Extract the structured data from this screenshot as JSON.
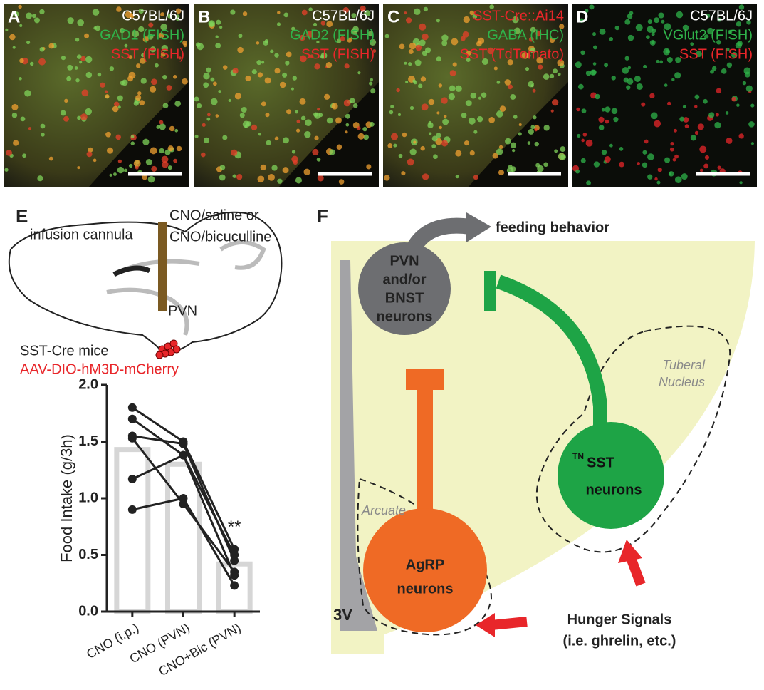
{
  "panels": [
    {
      "letter": "A",
      "lines": [
        {
          "text": "C57BL/6J",
          "color": "#ffffff"
        },
        {
          "text": "GAD1 (FISH)",
          "color": "#2fb34a"
        },
        {
          "text": "SST (FISH)",
          "color": "#e8262a"
        }
      ]
    },
    {
      "letter": "B",
      "lines": [
        {
          "text": "C57BL/6J",
          "color": "#ffffff"
        },
        {
          "text": "GAD2 (FISH)",
          "color": "#2fb34a"
        },
        {
          "text": "SST (FISH)",
          "color": "#e8262a"
        }
      ]
    },
    {
      "letter": "C",
      "lines": [
        {
          "text": "SST-Cre::Ai14",
          "color": "#e8262a"
        },
        {
          "text": "GABA (IHC)",
          "color": "#2fb34a"
        },
        {
          "text": "SST (TdTomato)",
          "color": "#e8262a"
        }
      ]
    },
    {
      "letter": "D",
      "lines": [
        {
          "text": "C57BL/6J",
          "color": "#ffffff"
        },
        {
          "text": "VGlut2 (FISH)",
          "color": "#2fb34a"
        },
        {
          "text": "SST (FISH)",
          "color": "#e8262a"
        }
      ]
    }
  ],
  "panel_e": {
    "letter": "E",
    "cannula_label": "infusion cannula",
    "infusion": [
      "CNO/saline or",
      "CNO/bicuculline"
    ],
    "region": "PVN",
    "mouse": "SST-Cre mice",
    "virus": "AAV-DIO-hM3D-mCherry"
  },
  "chart_data": {
    "type": "bar",
    "ylabel": "Food Intake (g/3h)",
    "categories": [
      "CNO (i.p.)",
      "CNO (PVN)",
      "CNO+Bic (PVN)"
    ],
    "values": [
      1.43,
      1.3,
      0.42
    ],
    "color": "#d6d6d6",
    "subjects": [
      {
        "values": [
          1.8,
          1.5,
          0.55
        ]
      },
      {
        "values": [
          1.7,
          1.38,
          0.5
        ]
      },
      {
        "values": [
          1.55,
          1.48,
          0.45
        ]
      },
      {
        "values": [
          1.53,
          0.95,
          0.35
        ]
      },
      {
        "values": [
          1.17,
          1.38,
          0.32
        ]
      },
      {
        "values": [
          0.9,
          1.0,
          0.23
        ]
      }
    ],
    "point_color": "#222222",
    "annotations": [
      {
        "category": 2,
        "text": "**"
      }
    ],
    "ylim": [
      0,
      2
    ],
    "yticks": [
      {
        "value": 0,
        "label": "0.0"
      },
      {
        "value": 0.5,
        "label": "0.5"
      },
      {
        "value": 1,
        "label": "1.0"
      },
      {
        "value": 1.5,
        "label": "1.5"
      },
      {
        "value": 2,
        "label": "2.0"
      }
    ]
  },
  "panel_f": {
    "letter": "F",
    "output": "feeding behavior",
    "pvn": [
      "PVN",
      "and/or",
      "BNST",
      "neurons"
    ],
    "tuberal": [
      "Tuberal",
      "Nucleus"
    ],
    "sst_prefix": "TN",
    "sst": [
      "SST",
      "neurons"
    ],
    "arcuate": "Arcuate",
    "agrp": [
      "AgRP",
      "neurons"
    ],
    "ventricle": "3V",
    "hunger": [
      "Hunger Signals",
      "(i.e. ghrelin, etc.)"
    ]
  }
}
